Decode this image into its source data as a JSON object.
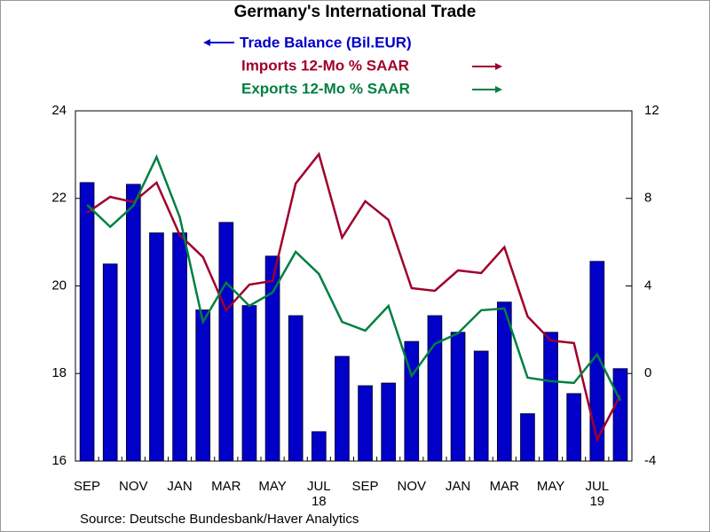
{
  "chart_data": {
    "type": "bar-line",
    "title": "Germany's International Trade",
    "source": "Source:  Deutsche Bundesbank/Haver Analytics",
    "categories": [
      "SEP",
      null,
      "NOV",
      null,
      "JAN",
      null,
      "MAR",
      null,
      "MAY",
      null,
      "JUL",
      null,
      "SEP",
      null,
      "NOV",
      null,
      "JAN",
      null,
      "MAR",
      null,
      "MAY",
      null,
      "JUL",
      null
    ],
    "category_years": [
      null,
      null,
      null,
      null,
      null,
      null,
      null,
      null,
      null,
      null,
      "18",
      null,
      null,
      null,
      null,
      null,
      null,
      null,
      null,
      null,
      null,
      null,
      "19",
      null
    ],
    "ylim": [
      16,
      24
    ],
    "yticks": [
      16,
      18,
      20,
      22,
      24
    ],
    "y2lim": [
      -4,
      12
    ],
    "y2ticks": [
      -4,
      0,
      4,
      8,
      12
    ],
    "series": [
      {
        "name": "Trade Balance (Bil.EUR)",
        "type": "bar",
        "color": "#0000c8",
        "axis": "y",
        "values": [
          22.36,
          20.5,
          22.32,
          21.21,
          21.21,
          19.45,
          21.45,
          19.55,
          20.68,
          19.32,
          16.67,
          18.39,
          17.72,
          17.78,
          18.73,
          19.32,
          18.94,
          18.51,
          19.63,
          17.08,
          18.94,
          17.54,
          20.56,
          18.11
        ]
      },
      {
        "name": "Imports 12-Mo % SAAR",
        "type": "line",
        "color": "#a0002a",
        "axis": "y2",
        "values": [
          7.34,
          8.07,
          7.83,
          8.72,
          6.33,
          5.32,
          2.89,
          4.06,
          4.23,
          8.68,
          10.02,
          6.21,
          7.87,
          7.02,
          3.9,
          3.78,
          4.71,
          4.59,
          5.77,
          2.61,
          1.51,
          1.39,
          -3.02,
          -1.0
        ]
      },
      {
        "name": "Exports 12-Mo % SAAR",
        "type": "line",
        "color": "#008040",
        "axis": "y2",
        "values": [
          7.71,
          6.7,
          7.67,
          9.89,
          7.14,
          2.36,
          4.15,
          3.09,
          3.7,
          5.56,
          4.55,
          2.36,
          1.96,
          3.09,
          -0.11,
          1.35,
          1.84,
          2.89,
          2.97,
          -0.19,
          -0.35,
          -0.43,
          0.87,
          -1.24
        ]
      }
    ]
  }
}
